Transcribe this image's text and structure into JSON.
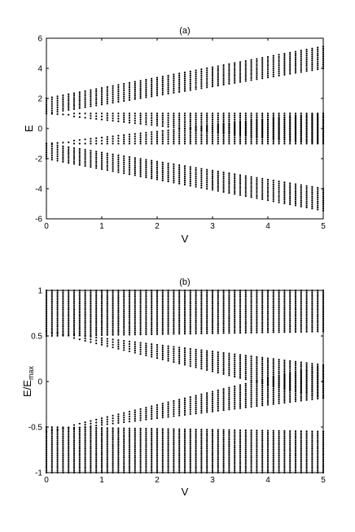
{
  "chart_data": [
    {
      "type": "scatter",
      "title": "(a)",
      "xlabel": "V",
      "ylabel": "E",
      "ylabel_sub": "",
      "xlim": [
        0,
        5
      ],
      "ylim": [
        -6,
        6
      ],
      "xticks": [
        0,
        1,
        2,
        3,
        4,
        5
      ],
      "yticks": [
        -6,
        -4,
        -2,
        0,
        2,
        4,
        6
      ],
      "grid": false,
      "marker_color": "#000000",
      "x_sampling": {
        "start": 0,
        "stop": 5,
        "step": 0.1
      },
      "bands": [
        {
          "name": "",
          "lower_start": 1.0,
          "lower_end": 4.0,
          "upper_start": 2.0,
          "upper_end": 5.45
        },
        {
          "name": "",
          "lower_start": -1.0,
          "lower_end": -4.0,
          "upper_start": -2.0,
          "upper_end": -5.45
        },
        {
          "name": "",
          "lower_start": 1.0,
          "lower_end": -1.0,
          "upper_start": 1.0,
          "upper_end": 1.0
        },
        {
          "name": "",
          "lower_start": -1.0,
          "lower_end": -1.0,
          "upper_start": -1.0,
          "upper_end": 1.0
        }
      ]
    },
    {
      "type": "scatter",
      "title": "(b)",
      "xlabel": "V",
      "ylabel": "E/E",
      "ylabel_sub": "max",
      "xlim": [
        0,
        5
      ],
      "ylim": [
        -1,
        1
      ],
      "xticks": [
        0,
        1,
        2,
        3,
        4,
        5
      ],
      "yticks": [
        -1,
        -0.5,
        0,
        0.5,
        1
      ],
      "grid": false,
      "marker_color": "#000000",
      "x_sampling": {
        "start": 0,
        "stop": 5,
        "step": 0.1
      },
      "bands": [
        {
          "name": "",
          "lower_start": 0.5,
          "lower_end": 0.55,
          "upper_start": 1.0,
          "upper_end": 1.0
        },
        {
          "name": "",
          "lower_start": -1.0,
          "lower_end": -1.0,
          "upper_start": -0.5,
          "upper_end": -0.55
        },
        {
          "name": "",
          "lower_start": 0.55,
          "lower_end": -0.18,
          "upper_start": 0.55,
          "upper_end": 0.18
        },
        {
          "name": "",
          "lower_start": -0.55,
          "lower_end": -0.18,
          "upper_start": -0.55,
          "upper_end": 0.18
        }
      ]
    }
  ]
}
